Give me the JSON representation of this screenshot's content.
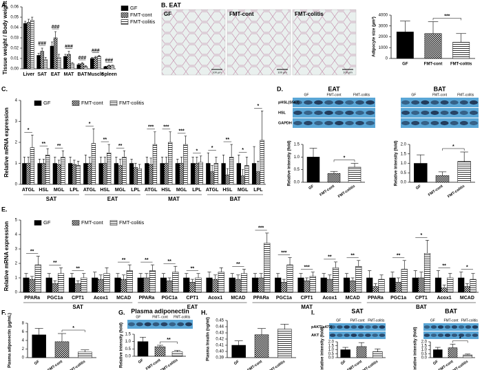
{
  "panel_labels": [
    "A.",
    "B. EAT",
    "C.",
    "D.",
    "E.",
    "F.",
    "G.",
    "H.",
    "I."
  ],
  "micrographs": {
    "labels": [
      "GF",
      "FMT-cont",
      "FMT-colitis"
    ],
    "scale_bar": "100 µm"
  },
  "blots": [
    {
      "title": "EAT",
      "groups": [
        "GF",
        "FMT-cont",
        "FMT-colitis"
      ],
      "rows": [
        "pHSL(S563)",
        "HSL",
        "GAPDH"
      ]
    },
    {
      "title": "BAT",
      "groups": [
        "GF",
        "FMT-cont",
        "FMT-colitis"
      ]
    },
    {
      "title": "Plasma adiponectin",
      "groups": [
        "GF",
        "FMT- cont",
        "FMT-colitis"
      ]
    },
    {
      "title": "SAT",
      "groups": [
        "GF",
        "FMT-cont",
        "FMT-colitis"
      ],
      "rows": [
        "pAKT(s473)",
        "AKT"
      ]
    },
    {
      "title": "BAT",
      "groups": [
        "GF",
        "FMT-cont",
        "FMT-colitis"
      ]
    }
  ],
  "chart_data": [
    {
      "type": "bar",
      "ylabel": "Tissue weight / Body weight",
      "legend": "right",
      "categories": [
        "Liver",
        "SAT",
        "EAT",
        "MAT",
        "BAT",
        "Muscle",
        "Spleen"
      ],
      "series": [
        {
          "name": "GF",
          "color": "#000000",
          "pattern": "solid",
          "values": [
            0.044,
            0.013,
            0.022,
            0.012,
            0.004,
            0.01,
            0.002
          ],
          "errors": [
            0.002,
            0.002,
            0.004,
            0.002,
            0.001,
            0.001,
            0.0005
          ]
        },
        {
          "name": "FMT-cont",
          "color": "#000000",
          "pattern": "checker",
          "values": [
            0.045,
            0.017,
            0.03,
            0.014,
            0.005,
            0.011,
            0.003
          ],
          "errors": [
            0.003,
            0.003,
            0.006,
            0.003,
            0.001,
            0.001,
            0.0005
          ]
        },
        {
          "name": "FMT-colitis",
          "color": "#000000",
          "pattern": "stripe",
          "values": [
            0.047,
            0.009,
            0.011,
            0.005,
            0.002,
            0.012,
            0.003
          ],
          "errors": [
            0.003,
            0.002,
            0.003,
            0.001,
            0.001,
            0.001,
            0.0005
          ]
        }
      ],
      "significance": [
        null,
        "###",
        "###",
        "###",
        "###",
        "###",
        "###"
      ],
      "ylim": [
        0,
        0.06
      ],
      "yticks": [
        {
          "value": 0,
          "label": "0.00"
        },
        0.01,
        0.02,
        0.03,
        0.04,
        0.05,
        0.06
      ]
    },
    {
      "type": "bar",
      "ylabel": "Adipocyte size (µm²)",
      "color": "#000000",
      "categories": [
        "GF",
        "FMT-cont",
        "FMT-colitis"
      ],
      "patterns": [
        "solid",
        "checker",
        "stripe"
      ],
      "values": [
        2450,
        2300,
        1500
      ],
      "errors": [
        1000,
        1100,
        800
      ],
      "annotation": {
        "text": "***",
        "between": [
          "FMT-cont",
          "FMT-colitis"
        ]
      },
      "ylim": [
        0,
        4000
      ],
      "yticks": [
        0,
        1000,
        2000,
        3000,
        4000
      ]
    },
    {
      "type": "bar",
      "ylabel": "Relative mRNA expression",
      "legend": "top",
      "categories": [
        "ATGL",
        "HSL",
        "MGL",
        "LPL",
        "ATGL",
        "HSL",
        "MGL",
        "LPL",
        "ATGL",
        "HSL",
        "MGL",
        "LPL",
        "ATGL",
        "HSL",
        "MGL",
        "LPL"
      ],
      "groups": [
        "SAT",
        "EAT",
        "MAT",
        "BAT"
      ],
      "series": [
        {
          "name": "GF",
          "color": "#000000",
          "pattern": "solid",
          "values": [
            1,
            1,
            1,
            1,
            1,
            1,
            1,
            1,
            1,
            1,
            1,
            1,
            1,
            1,
            1,
            1
          ],
          "errors": [
            0.3,
            0.2,
            0.3,
            0.3,
            0.4,
            0.3,
            0.3,
            0.2,
            0.3,
            0.3,
            0.2,
            0.3,
            0.5,
            0.4,
            0.4,
            0.8
          ]
        },
        {
          "name": "FMT-cont",
          "color": "#000000",
          "pattern": "checker",
          "values": [
            1.0,
            1.0,
            0.95,
            0.95,
            1.0,
            1.0,
            0.9,
            0.8,
            0.95,
            1.0,
            1.0,
            1.0,
            0.6,
            0.45,
            0.4,
            0.6
          ],
          "errors": [
            0.3,
            0.2,
            0.2,
            0.2,
            0.3,
            0.3,
            0.3,
            0.2,
            0.3,
            0.3,
            0.3,
            0.3,
            0.3,
            0.3,
            0.3,
            0.5
          ]
        },
        {
          "name": "FMT-colitis",
          "color": "#000000",
          "pattern": "stripe",
          "values": [
            1.75,
            1.4,
            1.3,
            0.9,
            1.95,
            1.5,
            1.3,
            0.75,
            1.9,
            2.0,
            1.9,
            1.05,
            1.0,
            1.3,
            0.9,
            2.1
          ],
          "errors": [
            0.6,
            0.3,
            0.3,
            0.2,
            0.7,
            0.4,
            0.3,
            0.2,
            0.6,
            0.5,
            0.4,
            0.3,
            0.3,
            0.6,
            0.4,
            1.4
          ]
        }
      ],
      "significance": [
        "*",
        "**",
        "**",
        null,
        "*",
        "**",
        "**",
        null,
        "***",
        "***",
        "***",
        "*",
        "*",
        "**",
        "*",
        "*"
      ],
      "ylim": [
        0,
        4
      ],
      "yticks": [
        0,
        1,
        2,
        3,
        4
      ]
    },
    {
      "type": "bar",
      "ylabel": "Relative intensity (fold)",
      "color": "#000000",
      "categories": [
        "GF",
        "FMT-cont",
        "FMT-colitis"
      ],
      "patterns": [
        "solid",
        "checker",
        "stripe"
      ],
      "values": [
        1.0,
        0.35,
        0.6
      ],
      "errors": [
        0.35,
        0.08,
        0.15
      ],
      "annotation": {
        "text": "*",
        "between": [
          "FMT-cont",
          "FMT-colitis"
        ]
      },
      "ylim": [
        0,
        1.5
      ],
      "yticks": [
        {
          "value": 0,
          "label": "0.0"
        },
        0.5,
        {
          "value": 1,
          "label": "1.0"
        },
        1.5
      ]
    },
    {
      "type": "bar",
      "ylabel": "Relative intensity (fold)",
      "color": "#000000",
      "categories": [
        "GF",
        "FMT-cont",
        "FMT-colitis"
      ],
      "patterns": [
        "solid",
        "checker",
        "stripe"
      ],
      "values": [
        1.0,
        0.35,
        1.1
      ],
      "errors": [
        0.45,
        0.2,
        0.5
      ],
      "annotation": {
        "text": "*",
        "between": [
          "FMT-cont",
          "FMT-colitis"
        ]
      },
      "ylim": [
        0,
        2
      ],
      "yticks": [
        {
          "value": 0,
          "label": "0.0"
        },
        0.5,
        {
          "value": 1,
          "label": "1.0"
        },
        1.5,
        {
          "value": 2,
          "label": "2.0"
        }
      ]
    },
    {
      "type": "bar",
      "ylabel": "Relative mRNA expression",
      "legend": "top",
      "categories": [
        "PPARa",
        "PGC1a",
        "CPT1",
        "Acox1",
        "MCAD",
        "PPARa",
        "PGC1a",
        "CPT1",
        "Acox1",
        "MCAD",
        "PPARa",
        "PGC1a",
        "CPT1",
        "Acox1",
        "MCAD",
        "PPARa",
        "PGC1a",
        "CPT1",
        "Acox1",
        "MCAD"
      ],
      "groups": [
        "SAT",
        "EAT",
        "MAT",
        "BAT"
      ],
      "series": [
        {
          "name": "GF",
          "color": "#000000",
          "pattern": "solid",
          "values": [
            1,
            1,
            1,
            1,
            1,
            1,
            1,
            1,
            1,
            1,
            1,
            1,
            1,
            1,
            1,
            1,
            1,
            1,
            1,
            1
          ],
          "errors": [
            0.3,
            0.3,
            0.3,
            0.4,
            0.3,
            0.3,
            0.3,
            0.3,
            0.4,
            0.3,
            0.3,
            0.3,
            0.3,
            0.3,
            0.3,
            0.5,
            0.4,
            0.5,
            0.5,
            0.4
          ]
        },
        {
          "name": "FMT-cont",
          "color": "#000000",
          "pattern": "checker",
          "values": [
            0.9,
            0.6,
            0.6,
            0.9,
            0.9,
            1.0,
            0.8,
            0.7,
            0.9,
            0.9,
            1.0,
            0.7,
            0.8,
            0.9,
            0.8,
            0.4,
            0.7,
            1.0,
            0.3,
            0.4
          ],
          "errors": [
            0.2,
            0.2,
            0.2,
            0.3,
            0.3,
            0.3,
            0.2,
            0.2,
            0.3,
            0.3,
            0.3,
            0.2,
            0.2,
            0.3,
            0.2,
            0.2,
            0.3,
            0.4,
            0.2,
            0.2
          ]
        },
        {
          "name": "FMT-colitis",
          "color": "#000000",
          "pattern": "stripe",
          "values": [
            1.9,
            1.3,
            1.0,
            1.3,
            1.5,
            1.5,
            1.4,
            1.0,
            1.4,
            1.3,
            3.4,
            1.9,
            1.1,
            1.7,
            1.8,
            0.9,
            1.6,
            2.7,
            1.0,
            0.9
          ],
          "errors": [
            0.6,
            0.4,
            0.3,
            0.4,
            0.4,
            0.4,
            0.4,
            0.3,
            0.3,
            0.3,
            0.7,
            0.5,
            0.3,
            0.4,
            0.4,
            0.3,
            0.6,
            0.9,
            0.3,
            0.4
          ]
        }
      ],
      "significance": [
        "**",
        "**",
        "**",
        null,
        "**",
        "**",
        "**",
        "**",
        null,
        "**",
        "***",
        "***",
        "***",
        "**",
        "**",
        null,
        "**",
        "*",
        "**",
        "*"
      ],
      "ylim": [
        0,
        5
      ],
      "yticks": [
        0,
        1,
        2,
        3,
        4,
        5
      ]
    },
    {
      "type": "bar",
      "ylabel": "Plasma adiponectin (µg/mL)",
      "color": "#000000",
      "categories": [
        "GF",
        "FMT-cont",
        "FMT-colitis"
      ],
      "patterns": [
        "solid",
        "checker",
        "stripe"
      ],
      "values": [
        5.3,
        3.7,
        1.3
      ],
      "errors": [
        1.5,
        1.9,
        0.5
      ],
      "annotation": {
        "text": "*",
        "between": [
          "FMT-cont",
          "FMT-colitis"
        ]
      },
      "ylim": [
        0,
        8
      ],
      "yticks": [
        0,
        2,
        4,
        6,
        8
      ]
    },
    {
      "type": "bar",
      "ylabel": "Relative intensity (fold)",
      "color": "#000000",
      "categories": [
        "GF",
        "FMT-cont",
        "FMT-colitis"
      ],
      "patterns": [
        "solid",
        "checker",
        "stripe"
      ],
      "values": [
        1.0,
        0.65,
        0.3
      ],
      "errors": [
        0.3,
        0.1,
        0.1
      ],
      "annotation": {
        "text": "**",
        "between": [
          "FMT-cont",
          "FMT-colitis"
        ]
      },
      "ylim": [
        0,
        1.5
      ],
      "yticks": [
        {
          "value": 0,
          "label": "0.0"
        },
        0.5,
        {
          "value": 1,
          "label": "1.0"
        },
        1.5
      ]
    },
    {
      "type": "bar",
      "ylabel": "Plasma Insulin (ng/ml)",
      "color": "#000000",
      "categories": [
        "GF",
        "FMT-cont",
        "FMT-colitis"
      ],
      "patterns": [
        "solid",
        "checker",
        "stripe"
      ],
      "values": [
        0.41,
        0.427,
        0.436
      ],
      "errors": [
        0.007,
        0.01,
        0.008
      ],
      "ylim": [
        0.39,
        0.45
      ],
      "yticks": [
        0.39,
        {
          "value": 0.4,
          "label": "0.40"
        },
        0.41,
        0.42,
        0.43,
        0.44,
        0.45
      ]
    },
    {
      "type": "bar",
      "ylabel": "Relative intensity (fold)",
      "color": "#000000",
      "categories": [
        "GF",
        "FMT-cont",
        "FMT-colitis"
      ],
      "patterns": [
        "solid",
        "checker",
        "stripe"
      ],
      "values": [
        1.0,
        1.4,
        0.75
      ],
      "errors": [
        0.3,
        0.5,
        0.35
      ],
      "ylim": [
        0,
        2
      ],
      "yticks": [
        {
          "value": 0,
          "label": "0.0"
        },
        0.5,
        {
          "value": 1,
          "label": "1.0"
        },
        1.5,
        {
          "value": 2,
          "label": "2.0"
        }
      ]
    },
    {
      "type": "bar",
      "ylabel": "Relative intensity (fold)",
      "color": "#000000",
      "categories": [
        "GF",
        "FMT-cont",
        "FMT-colitis"
      ],
      "patterns": [
        "solid",
        "checker",
        "stripe"
      ],
      "values": [
        1.0,
        1.25,
        0.35
      ],
      "errors": [
        0.3,
        0.45,
        0.1
      ],
      "annotation": {
        "text": "*",
        "between": [
          "FMT-cont",
          "FMT-colitis"
        ]
      },
      "ylim": [
        0,
        2
      ],
      "yticks": [
        {
          "value": 0,
          "label": "0.0"
        },
        0.5,
        {
          "value": 1,
          "label": "1.0"
        },
        1.5,
        {
          "value": 2,
          "label": "2.0"
        }
      ]
    }
  ]
}
